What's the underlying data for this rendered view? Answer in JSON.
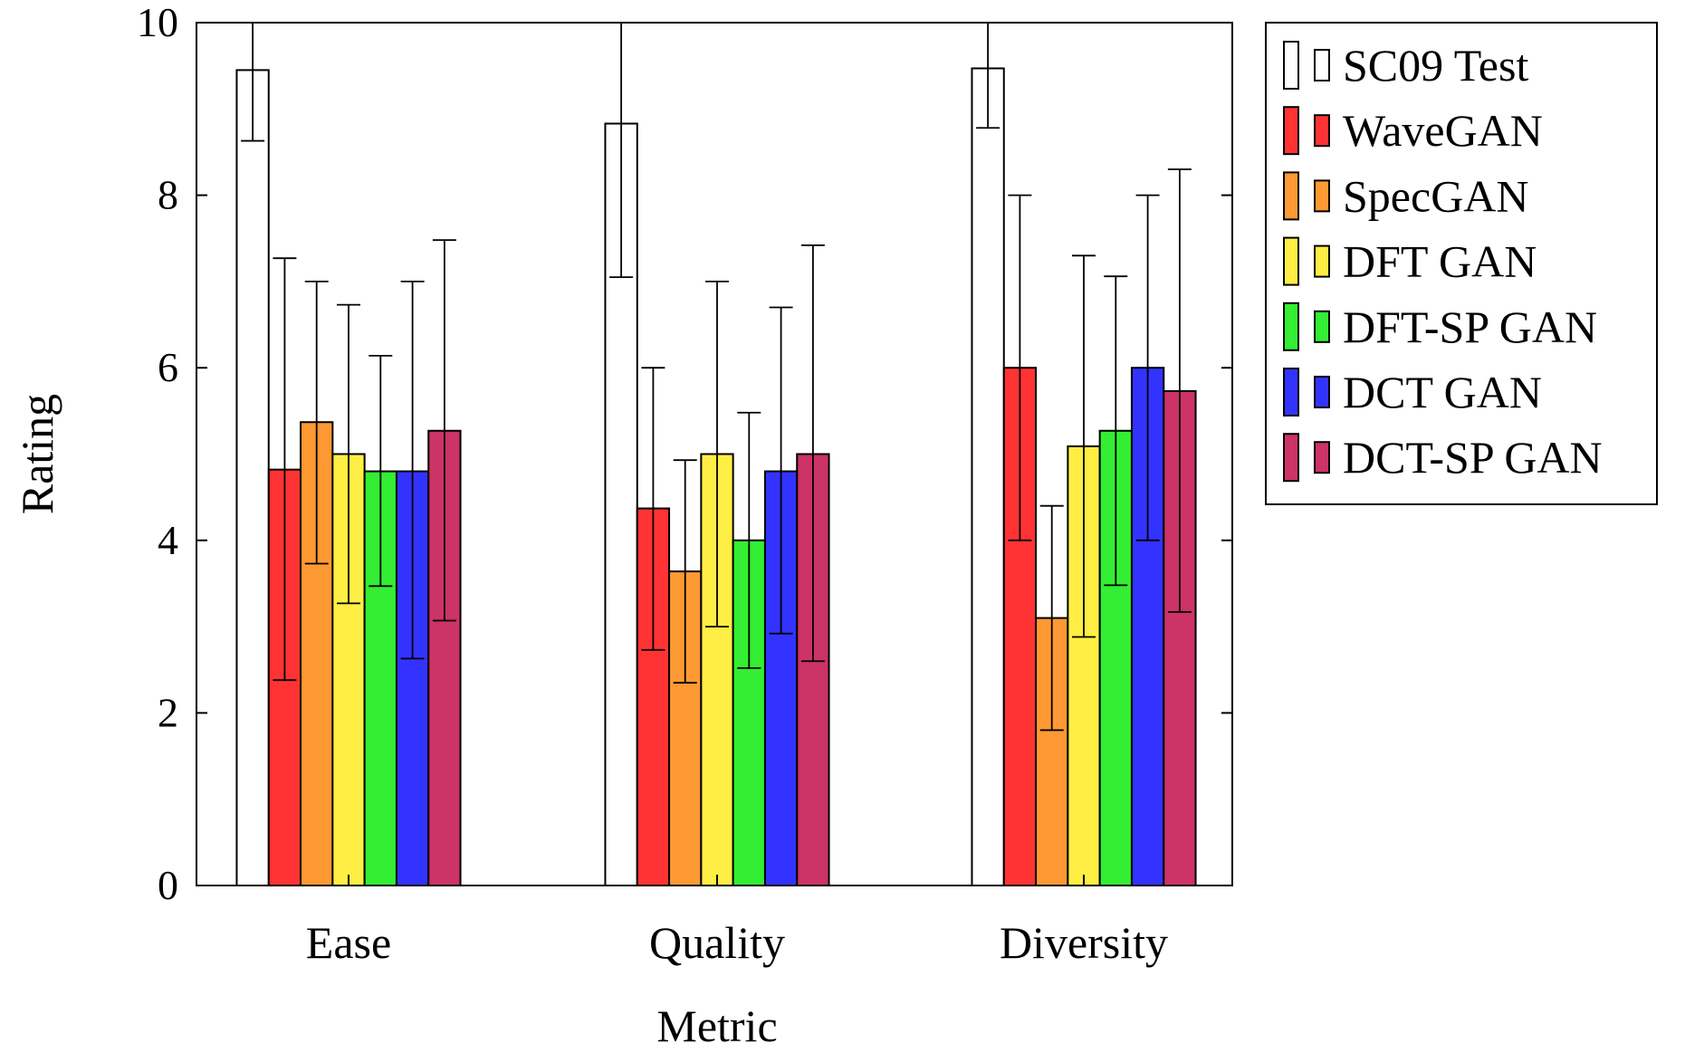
{
  "chart_data": {
    "type": "bar",
    "xlabel": "Metric",
    "ylabel": "Rating",
    "ylim": [
      0,
      10
    ],
    "yticks": [
      0,
      2,
      4,
      6,
      8,
      10
    ],
    "categories": [
      "Ease",
      "Quality",
      "Diversity"
    ],
    "grid": false,
    "legend_position": "outside-right-top",
    "series": [
      {
        "name": "SC09 Test",
        "color": "#ffffff",
        "values": [
          9.45,
          8.83,
          9.47
        ],
        "errors": [
          [
            8.63,
            10.0
          ],
          [
            7.05,
            10.0
          ],
          [
            8.78,
            10.0
          ]
        ]
      },
      {
        "name": "WaveGAN",
        "color": "#ff3333",
        "values": [
          4.82,
          4.37,
          6.0
        ],
        "errors": [
          [
            2.38,
            7.27
          ],
          [
            2.73,
            6.0
          ],
          [
            4.0,
            8.0
          ]
        ]
      },
      {
        "name": "SpecGAN",
        "color": "#ff9933",
        "values": [
          5.37,
          3.64,
          3.1
        ],
        "errors": [
          [
            3.73,
            7.0
          ],
          [
            2.35,
            4.93
          ],
          [
            1.8,
            4.4
          ]
        ]
      },
      {
        "name": "DFT GAN",
        "color": "#ffee44",
        "values": [
          5.0,
          5.0,
          5.09
        ],
        "errors": [
          [
            3.27,
            6.73
          ],
          [
            3.0,
            7.0
          ],
          [
            2.88,
            7.3
          ]
        ]
      },
      {
        "name": "DFT-SP GAN",
        "color": "#33ee33",
        "values": [
          4.8,
          4.0,
          5.27
        ],
        "errors": [
          [
            3.47,
            6.14
          ],
          [
            2.52,
            5.48
          ],
          [
            3.48,
            7.06
          ]
        ]
      },
      {
        "name": "DCT GAN",
        "color": "#3333ff",
        "values": [
          4.8,
          4.8,
          6.0
        ],
        "errors": [
          [
            2.63,
            7.0
          ],
          [
            2.92,
            6.7
          ],
          [
            4.0,
            8.0
          ]
        ]
      },
      {
        "name": "DCT-SP GAN",
        "color": "#cc3366",
        "values": [
          5.27,
          5.0,
          5.73
        ],
        "errors": [
          [
            3.07,
            7.48
          ],
          [
            2.6,
            7.42
          ],
          [
            3.17,
            8.3
          ]
        ]
      }
    ]
  }
}
